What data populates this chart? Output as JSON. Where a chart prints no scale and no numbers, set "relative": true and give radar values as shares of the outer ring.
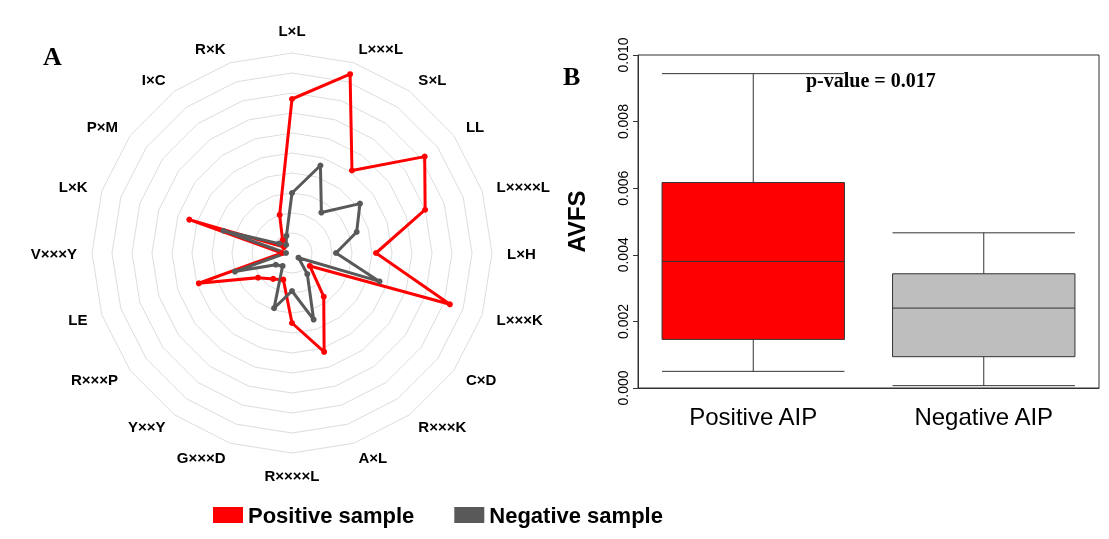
{
  "chart_data": [
    {
      "type": "radar",
      "title": "A",
      "relative": true,
      "legend": "bottom",
      "marker": "circle",
      "categories": [
        "L×L",
        "L×××L",
        "S×L",
        "LL",
        "L××××L",
        "L×H",
        "L×××K",
        "C×D",
        "R×××K",
        "A×L",
        "R××××L",
        "G×××D",
        "Y××Y",
        "R×××P",
        "LE",
        "V×××Y",
        "L×K",
        "P×M",
        "I×C",
        "R×K"
      ],
      "series": [
        {
          "name": "Positive sample",
          "color": "#ff0000",
          "values": [
            0.77,
            0.94,
            0.51,
            0.82,
            0.7,
            0.42,
            0.83,
            0.11,
            0.27,
            0.52,
            0.35,
            0.14,
            0.16,
            0.21,
            0.49,
            0.05,
            0.54,
            0.05,
            0.08,
            0.2
          ]
        },
        {
          "name": "Negative sample",
          "color": "#595959",
          "values": [
            0.3,
            0.46,
            0.25,
            0.42,
            0.34,
            0.22,
            0.46,
            0.04,
            0.13,
            0.35,
            0.19,
            0.29,
            0.08,
            0.1,
            0.3,
            0.03,
            0.36,
            0.08,
            0.05,
            0.09
          ]
        }
      ]
    },
    {
      "type": "box",
      "title": "B",
      "ylabel": "AVFS",
      "categories": [
        "Positive AIP",
        "Negative AIP"
      ],
      "colors": [
        "#ff0000",
        "#bebebe"
      ],
      "boxes": [
        {
          "low": 0.0005,
          "q1": 0.00146,
          "median": 0.0038,
          "q3": 0.00617,
          "high": 0.00944
        },
        {
          "low": 7e-05,
          "q1": 0.00094,
          "median": 0.0024,
          "q3": 0.00343,
          "high": 0.00466
        }
      ],
      "ylim": [
        0,
        0.01
      ],
      "yticks": [
        {
          "value": 0,
          "label": "0.000"
        },
        {
          "value": 0.002,
          "label": "0.002"
        },
        {
          "value": 0.004,
          "label": "0.004"
        },
        {
          "value": 0.006,
          "label": "0.006"
        },
        {
          "value": 0.008,
          "label": "0.008"
        },
        {
          "value": 0.01,
          "label": "0.010"
        }
      ],
      "annotations": [
        "p-value = 0.017"
      ]
    }
  ]
}
